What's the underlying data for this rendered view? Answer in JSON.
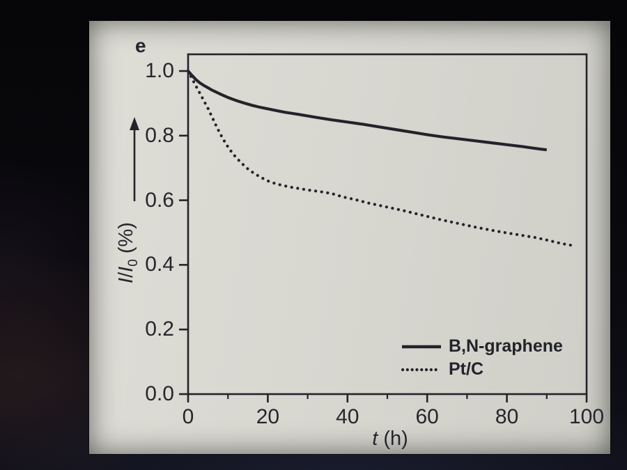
{
  "panel_label": "e",
  "colors": {
    "ink": "#23232b",
    "panel_bg": "#d8d7d0",
    "photo_bg": "#08070b"
  },
  "axis": {
    "x": {
      "label_main": "t",
      "label_unit": " (h)"
    },
    "y": {
      "label_parts": {
        "i1": "I",
        "slash": "/",
        "i2": "I",
        "sub": "0",
        "unit": " (%)"
      }
    }
  },
  "chart_data": {
    "type": "line",
    "title": "",
    "xlabel": "t (h)",
    "ylabel": "I/I0 (%)",
    "xlim": [
      0,
      100
    ],
    "ylim": [
      0,
      1.05
    ],
    "grid": false,
    "legend_position": "lower right",
    "x_ticks": [
      0,
      20,
      40,
      60,
      80,
      100
    ],
    "x_tick_labels": [
      "0",
      "20",
      "40",
      "60",
      "80",
      "100"
    ],
    "x_minor_ticks": [
      10,
      30,
      50,
      70,
      90
    ],
    "y_ticks": [
      0,
      0.2,
      0.4,
      0.6,
      0.8,
      1.0
    ],
    "y_tick_labels": [
      "0.0",
      "0.2",
      "0.4",
      "0.6",
      "0.8",
      "1.0"
    ],
    "series": [
      {
        "name": "B,N-graphene",
        "line_style": "solid",
        "color": "#23232b",
        "points": [
          [
            0,
            1.0
          ],
          [
            1,
            0.986
          ],
          [
            2,
            0.973
          ],
          [
            3,
            0.963
          ],
          [
            4,
            0.955
          ],
          [
            5,
            0.948
          ],
          [
            6,
            0.941
          ],
          [
            8,
            0.929
          ],
          [
            10,
            0.918
          ],
          [
            12,
            0.909
          ],
          [
            14,
            0.901
          ],
          [
            16,
            0.894
          ],
          [
            18,
            0.888
          ],
          [
            20,
            0.883
          ],
          [
            24,
            0.873
          ],
          [
            28,
            0.865
          ],
          [
            32,
            0.857
          ],
          [
            36,
            0.849
          ],
          [
            40,
            0.842
          ],
          [
            44,
            0.835
          ],
          [
            48,
            0.827
          ],
          [
            52,
            0.819
          ],
          [
            56,
            0.811
          ],
          [
            60,
            0.803
          ],
          [
            64,
            0.796
          ],
          [
            68,
            0.79
          ],
          [
            72,
            0.784
          ],
          [
            76,
            0.778
          ],
          [
            80,
            0.772
          ],
          [
            84,
            0.766
          ],
          [
            88,
            0.759
          ],
          [
            90,
            0.756
          ]
        ]
      },
      {
        "name": "Pt/C",
        "line_style": "dotted",
        "color": "#23232b",
        "points": [
          [
            0,
            1.0
          ],
          [
            1,
            0.976
          ],
          [
            2,
            0.953
          ],
          [
            3,
            0.93
          ],
          [
            4,
            0.907
          ],
          [
            5,
            0.884
          ],
          [
            6,
            0.858
          ],
          [
            7,
            0.832
          ],
          [
            8,
            0.807
          ],
          [
            9,
            0.785
          ],
          [
            10,
            0.765
          ],
          [
            11,
            0.748
          ],
          [
            12,
            0.733
          ],
          [
            13,
            0.72
          ],
          [
            14,
            0.708
          ],
          [
            15,
            0.697
          ],
          [
            16,
            0.688
          ],
          [
            17,
            0.68
          ],
          [
            18,
            0.673
          ],
          [
            19,
            0.666
          ],
          [
            20,
            0.66
          ],
          [
            22,
            0.651
          ],
          [
            24,
            0.645
          ],
          [
            26,
            0.64
          ],
          [
            28,
            0.636
          ],
          [
            30,
            0.632
          ],
          [
            33,
            0.627
          ],
          [
            36,
            0.621
          ],
          [
            39,
            0.61
          ],
          [
            42,
            0.602
          ],
          [
            45,
            0.592
          ],
          [
            48,
            0.584
          ],
          [
            51,
            0.576
          ],
          [
            54,
            0.568
          ],
          [
            57,
            0.559
          ],
          [
            60,
            0.55
          ],
          [
            63,
            0.541
          ],
          [
            66,
            0.533
          ],
          [
            69,
            0.525
          ],
          [
            72,
            0.517
          ],
          [
            75,
            0.51
          ],
          [
            78,
            0.503
          ],
          [
            81,
            0.497
          ],
          [
            84,
            0.491
          ],
          [
            87,
            0.485
          ],
          [
            90,
            0.477
          ],
          [
            93,
            0.468
          ],
          [
            95,
            0.463
          ],
          [
            97,
            0.459
          ]
        ]
      }
    ]
  }
}
